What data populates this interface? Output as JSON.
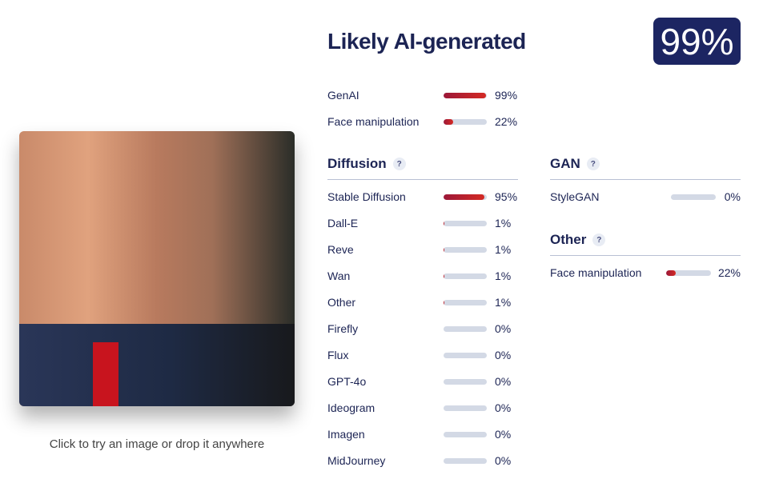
{
  "image": {
    "alt": "Uploaded image"
  },
  "caption": "Click to try an image or drop it anywhere",
  "verdict": {
    "title": "Likely AI-generated",
    "score": "99%"
  },
  "summary": [
    {
      "label": "GenAI",
      "value": 99,
      "pct": "99%"
    },
    {
      "label": "Face manipulation",
      "value": 22,
      "pct": "22%"
    }
  ],
  "sections": {
    "diffusion": {
      "title": "Diffusion",
      "help": "?",
      "items": [
        {
          "label": "Stable Diffusion",
          "value": 95,
          "pct": "95%"
        },
        {
          "label": "Dall-E",
          "value": 1,
          "pct": "1%"
        },
        {
          "label": "Reve",
          "value": 1,
          "pct": "1%"
        },
        {
          "label": "Wan",
          "value": 1,
          "pct": "1%"
        },
        {
          "label": "Other",
          "value": 1,
          "pct": "1%"
        },
        {
          "label": "Firefly",
          "value": 0,
          "pct": "0%"
        },
        {
          "label": "Flux",
          "value": 0,
          "pct": "0%"
        },
        {
          "label": "GPT-4o",
          "value": 0,
          "pct": "0%"
        },
        {
          "label": "Ideogram",
          "value": 0,
          "pct": "0%"
        },
        {
          "label": "Imagen",
          "value": 0,
          "pct": "0%"
        },
        {
          "label": "MidJourney",
          "value": 0,
          "pct": "0%"
        }
      ]
    },
    "gan": {
      "title": "GAN",
      "help": "?",
      "items": [
        {
          "label": "StyleGAN",
          "value": 0,
          "pct": "0%"
        }
      ]
    },
    "other": {
      "title": "Other",
      "help": "?",
      "items": [
        {
          "label": "Face manipulation",
          "value": 22,
          "pct": "22%"
        }
      ]
    }
  },
  "colors": {
    "accent": "#1c2562",
    "bar_start": "#9c1838",
    "bar_end": "#d42a24",
    "track": "#d3d9e5"
  }
}
